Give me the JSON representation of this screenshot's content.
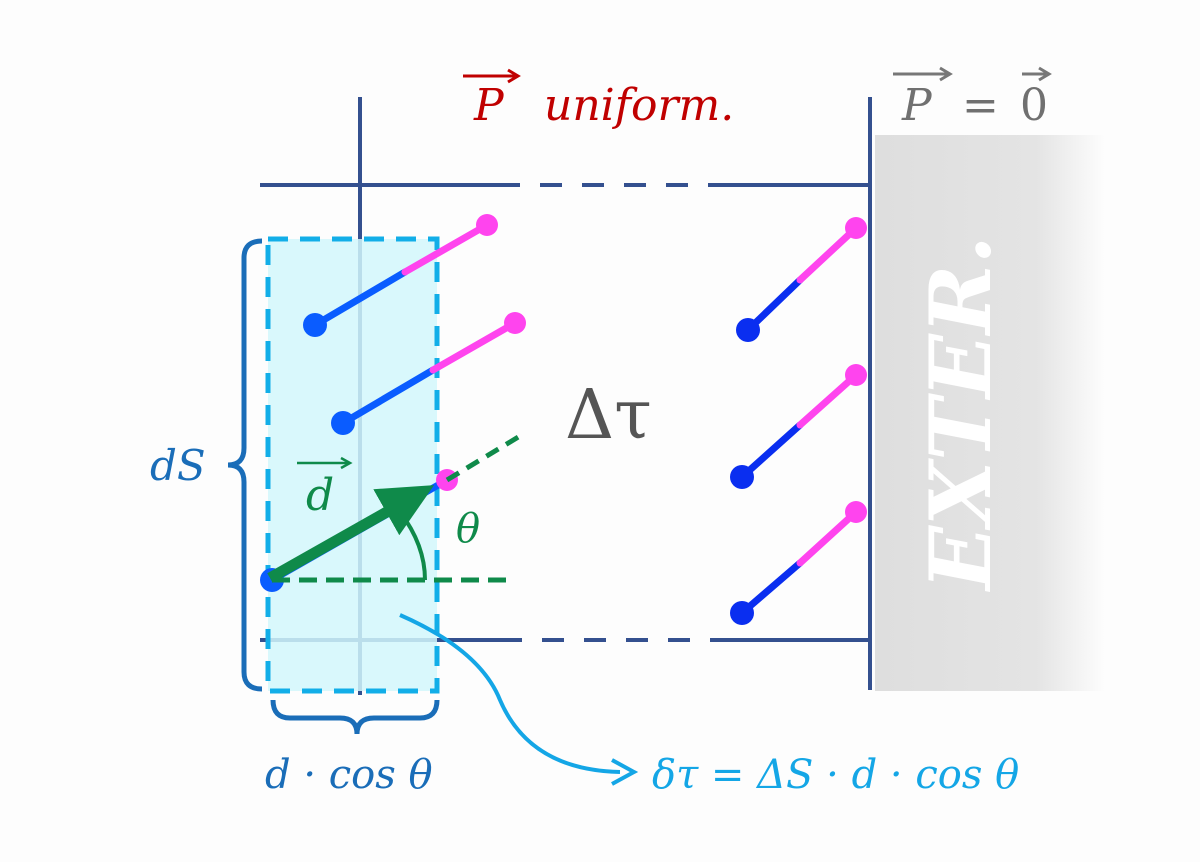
{
  "labels": {
    "p_uniform_symbol": "P",
    "p_uniform_text": "uniform.",
    "p_zero_lhs": "P",
    "p_zero_eq": "=",
    "p_zero_rhs": "0",
    "delta_tau": "Δτ",
    "dS": "dS",
    "d_vector": "d",
    "theta": "θ",
    "d_cos_theta": "d · cos θ",
    "formula": "δτ = ΔS · d · cos θ",
    "exterior": "EXTER."
  },
  "colors": {
    "boundary": "#34508f",
    "volume_slab": "#d2f7fb",
    "slab_border": "#12aee8",
    "dipole_negative": "#0a5cff",
    "dipole_positive": "#ff44ee",
    "vector_d": "#0f8a4a",
    "brace": "#1a6db8",
    "p_uniform_text": "#c00000",
    "formula": "#14a6e6",
    "exterior": "#e0e0e0"
  }
}
